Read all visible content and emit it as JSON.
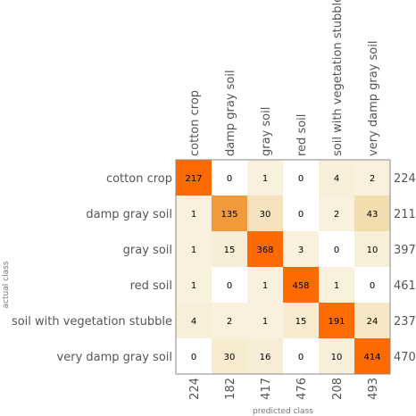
{
  "chart_data": {
    "type": "heatmap",
    "title": "",
    "xlabel": "predicted class",
    "ylabel": "actual class",
    "classes": [
      "cotton crop",
      "damp gray soil",
      "gray soil",
      "red soil",
      "soil with vegetation stubble",
      "very damp gray soil"
    ],
    "matrix": [
      [
        217,
        0,
        1,
        0,
        4,
        2
      ],
      [
        1,
        135,
        30,
        0,
        2,
        43
      ],
      [
        1,
        15,
        368,
        3,
        0,
        10
      ],
      [
        1,
        0,
        1,
        458,
        1,
        0
      ],
      [
        4,
        2,
        1,
        15,
        191,
        24
      ],
      [
        0,
        30,
        16,
        0,
        10,
        414
      ]
    ],
    "row_totals": [
      224,
      211,
      397,
      461,
      237,
      470
    ],
    "col_totals": [
      224,
      182,
      417,
      476,
      208,
      493
    ],
    "colors": {
      "low": "#f9f1df",
      "mid": "#e8c06a",
      "high": "#ff6a00",
      "zero": "#ffffff",
      "frame": "#888888"
    }
  }
}
